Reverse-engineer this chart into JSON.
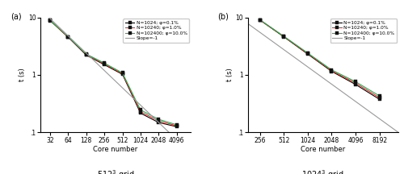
{
  "panel_a": {
    "title": "512$^3$ grid",
    "xlabel": "Core number",
    "ylabel": "t (s)",
    "x_ticks": [
      32,
      64,
      128,
      256,
      512,
      1024,
      2048,
      4096
    ],
    "ylim": [
      0.1,
      10
    ],
    "xlim": [
      22,
      7000
    ],
    "series": [
      {
        "label": "N=1024; φ=0.1%",
        "color": "#000000",
        "lw": 0.8,
        "x": [
          32,
          64,
          128,
          256,
          512,
          1024,
          2048,
          4096
        ],
        "y": [
          8.8,
          4.5,
          2.2,
          1.5,
          1.02,
          0.215,
          0.148,
          0.125
        ]
      },
      {
        "label": "N=10240; φ=1.0%",
        "color": "#dd3333",
        "lw": 0.8,
        "x": [
          32,
          64,
          128,
          256,
          512,
          1024,
          2048,
          4096
        ],
        "y": [
          8.85,
          4.55,
          2.25,
          1.55,
          1.05,
          0.228,
          0.158,
          0.13
        ]
      },
      {
        "label": "N=102400; φ=10.0%",
        "color": "#33aa55",
        "lw": 0.8,
        "x": [
          32,
          64,
          128,
          256,
          512,
          1024,
          2048,
          4096
        ],
        "y": [
          8.9,
          4.6,
          2.3,
          1.6,
          1.08,
          0.245,
          0.168,
          0.135
        ]
      }
    ],
    "slope_line": {
      "label": "Slope=-1",
      "color": "#999999",
      "x": [
        32,
        8000
      ],
      "y_start": 9.5,
      "x_start": 32,
      "slope": -1
    }
  },
  "panel_b": {
    "title": "1024$^3$ grid",
    "xlabel": "Core number",
    "ylabel": "t (s)",
    "x_ticks": [
      256,
      512,
      1024,
      2048,
      4096,
      8192
    ],
    "ylim": [
      0.1,
      10
    ],
    "xlim": [
      180,
      14000
    ],
    "series": [
      {
        "label": "N=1024; φ=0.1%",
        "color": "#000000",
        "lw": 0.8,
        "x": [
          256,
          512,
          1024,
          2048,
          4096,
          8192
        ],
        "y": [
          9.0,
          4.6,
          2.3,
          1.15,
          0.68,
          0.375
        ]
      },
      {
        "label": "N=10240; φ=1.0%",
        "color": "#dd3333",
        "lw": 0.8,
        "x": [
          256,
          512,
          1024,
          2048,
          4096,
          8192
        ],
        "y": [
          9.05,
          4.65,
          2.35,
          1.18,
          0.72,
          0.4
        ]
      },
      {
        "label": "N=102400; φ=10.0%",
        "color": "#33aa55",
        "lw": 0.8,
        "x": [
          256,
          512,
          1024,
          2048,
          4096,
          8192
        ],
        "y": [
          9.1,
          4.7,
          2.4,
          1.22,
          0.76,
          0.43
        ]
      }
    ],
    "slope_line": {
      "label": "Slope=-1",
      "color": "#999999",
      "x": [
        180,
        14000
      ],
      "y_start": 5.5,
      "x_start": 256,
      "slope": -1
    }
  }
}
